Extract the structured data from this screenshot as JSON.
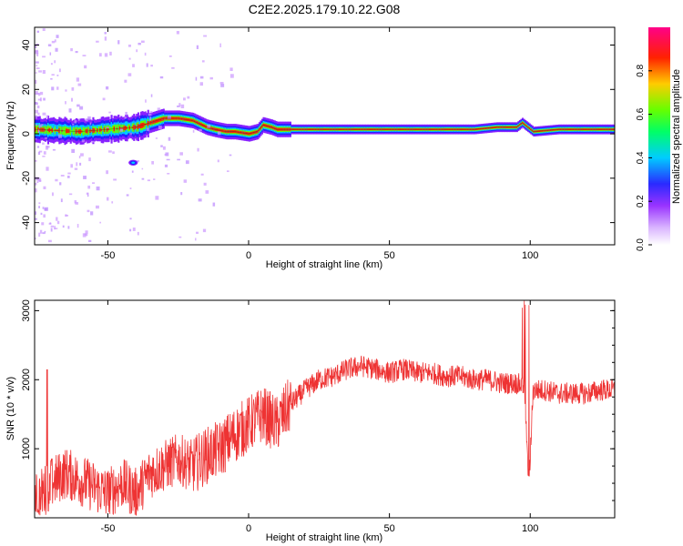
{
  "title": "C2E2.2025.179.10.22.G08",
  "chart_data": [
    {
      "type": "heatmap",
      "xlabel": "Height of straight line (km)",
      "ylabel": "Frequency (Hz)",
      "xlim": [
        -76,
        130
      ],
      "ylim": [
        -50,
        48
      ],
      "xticks": [
        -50,
        0,
        50,
        100
      ],
      "yticks": [
        -40,
        -20,
        0,
        20,
        40
      ],
      "colorbar": {
        "label": "Normalized spectral amplitude",
        "range": [
          0,
          1
        ],
        "ticks": [
          "0.0",
          "0.2",
          "0.4",
          "0.6",
          "0.8"
        ],
        "colors": [
          "#ffffff",
          "#cc99ff",
          "#8822ff",
          "#2222ff",
          "#00ccff",
          "#00ff66",
          "#66ff00",
          "#ffaa00",
          "#ff2200",
          "#ff0088"
        ]
      },
      "ridge": {
        "x": [
          -76,
          -60,
          -50,
          -40,
          -35,
          -30,
          -25,
          -20,
          -15,
          -12,
          -8,
          -5,
          0,
          3,
          5,
          8,
          10,
          20,
          40,
          60,
          80,
          88,
          95,
          97,
          99,
          101,
          110,
          120,
          130
        ],
        "freq": [
          2,
          1,
          2,
          3,
          5,
          7,
          7,
          6,
          3,
          2,
          1,
          1,
          0,
          1,
          4,
          3,
          2,
          2,
          2,
          2,
          2,
          3,
          3,
          5,
          3,
          1,
          2,
          2,
          2
        ]
      }
    },
    {
      "type": "line",
      "xlabel": "Height of straight line (km)",
      "ylabel": "SNR (10 * v/v)",
      "xlim": [
        -76,
        130
      ],
      "ylim": [
        0,
        3150
      ],
      "xticks": [
        -50,
        0,
        50,
        100
      ],
      "yticks": [
        1000,
        2000,
        3000
      ],
      "series": [
        {
          "color": "#ee3333",
          "x": [
            -76,
            -70,
            -65,
            -60,
            -55,
            -50,
            -45,
            -40,
            -35,
            -30,
            -25,
            -20,
            -15,
            -10,
            -5,
            0,
            5,
            10,
            15,
            20,
            25,
            30,
            35,
            40,
            45,
            50,
            55,
            60,
            65,
            70,
            75,
            80,
            85,
            90,
            95,
            98,
            99.5,
            101,
            105,
            110,
            115,
            120,
            125,
            130
          ],
          "y": [
            250,
            500,
            650,
            550,
            450,
            350,
            500,
            350,
            650,
            750,
            850,
            750,
            900,
            1000,
            1200,
            1350,
            1500,
            1350,
            1650,
            1850,
            2000,
            2050,
            2150,
            2200,
            2150,
            2100,
            2150,
            2100,
            2100,
            2050,
            2050,
            2000,
            2000,
            1950,
            1950,
            1900,
            400,
            1850,
            1850,
            1800,
            1800,
            1800,
            1850,
            1850
          ]
        }
      ]
    }
  ]
}
